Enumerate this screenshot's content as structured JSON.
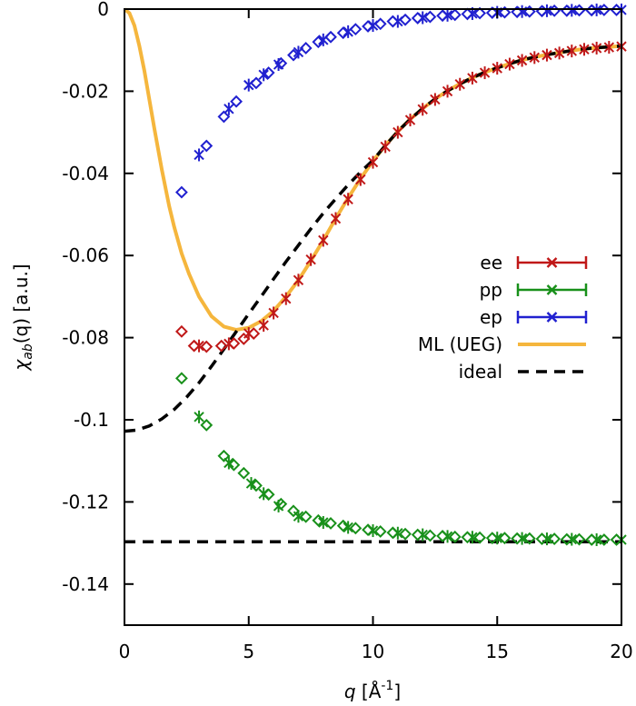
{
  "chart_data": {
    "type": "scatter",
    "xlabel_var": "q",
    "xlabel_rest": " [Å",
    "xlabel_sup": "-1",
    "xlabel_close": "]",
    "ylabel_var": "χ",
    "ylabel_sub": "ab",
    "ylabel_rest": "(q) [a.u.]",
    "xlim": [
      0,
      20
    ],
    "ylim": [
      -0.15,
      0
    ],
    "xticks": [
      0,
      5,
      10,
      15,
      20
    ],
    "xtick_labels": [
      "0",
      "5",
      "10",
      "15",
      "20"
    ],
    "yticks": [
      0,
      -0.02,
      -0.04,
      -0.06,
      -0.08,
      -0.1,
      -0.12,
      -0.14
    ],
    "ytick_labels": [
      "0",
      "-0.02",
      "-0.04",
      "-0.06",
      "-0.08",
      "-0.1",
      "-0.12",
      "-0.14"
    ],
    "grid": false,
    "legend_position": "right",
    "colors": {
      "ee": "#c01818",
      "pp": "#18901a",
      "ep": "#2020d0",
      "ml": "#f5b63d",
      "ideal": "#000000"
    },
    "series": [
      {
        "name": "ee",
        "marker": "x-errorbar",
        "diamond_x": [
          2.3,
          2.8,
          3.3,
          3.9,
          4.4,
          4.8,
          5.2
        ],
        "diamond_y": [
          -0.0785,
          -0.082,
          -0.0822,
          -0.082,
          -0.0814,
          -0.0803,
          -0.079
        ],
        "x": [
          3.0,
          4.2,
          5.0,
          5.6,
          6.0,
          6.5,
          7.0,
          7.5,
          8.0,
          8.5,
          9.0,
          9.5,
          10.0,
          10.5,
          11.0,
          11.5,
          12.0,
          12.5,
          13.0,
          13.5,
          14.0,
          14.5,
          15.0,
          15.5,
          16.0,
          16.5,
          17.0,
          17.5,
          18.0,
          18.5,
          19.0,
          19.5,
          20.0
        ],
        "y": [
          -0.082,
          -0.0815,
          -0.079,
          -0.077,
          -0.074,
          -0.0705,
          -0.066,
          -0.061,
          -0.0563,
          -0.051,
          -0.0463,
          -0.0415,
          -0.0373,
          -0.0335,
          -0.03,
          -0.027,
          -0.0244,
          -0.022,
          -0.02,
          -0.0183,
          -0.0168,
          -0.0155,
          -0.0144,
          -0.0134,
          -0.0125,
          -0.0118,
          -0.0112,
          -0.0107,
          -0.0102,
          -0.0098,
          -0.0095,
          -0.0093,
          -0.0091
        ]
      },
      {
        "name": "pp",
        "marker": "x-errorbar",
        "diamond_x": [
          2.3,
          3.3,
          4.0,
          4.4,
          4.8,
          5.3,
          5.8,
          6.3,
          6.8,
          7.3,
          7.8,
          8.3,
          8.8,
          9.3,
          9.8,
          10.3,
          10.8,
          11.3,
          11.8,
          12.3,
          12.8,
          13.3,
          13.8,
          14.3,
          14.8,
          15.3,
          15.8,
          16.3,
          16.8,
          17.3,
          17.8,
          18.3,
          18.8,
          19.3,
          19.8
        ],
        "diamond_y": [
          -0.0899,
          -0.1013,
          -0.1088,
          -0.111,
          -0.113,
          -0.116,
          -0.1182,
          -0.1205,
          -0.1222,
          -0.1236,
          -0.1245,
          -0.1252,
          -0.1258,
          -0.1264,
          -0.1268,
          -0.1272,
          -0.1275,
          -0.1278,
          -0.128,
          -0.1282,
          -0.1283,
          -0.1285,
          -0.1286,
          -0.1287,
          -0.1288,
          -0.1288,
          -0.1289,
          -0.1289,
          -0.129,
          -0.129,
          -0.1291,
          -0.1291,
          -0.1292,
          -0.1292,
          -0.1292
        ],
        "x": [
          3.0,
          4.2,
          5.1,
          5.6,
          6.2,
          7.0,
          8.0,
          9.0,
          10.0,
          11.0,
          12.0,
          13.0,
          14.0,
          15.0,
          16.0,
          17.0,
          18.0,
          19.0,
          20.0
        ],
        "y": [
          -0.0993,
          -0.1105,
          -0.1155,
          -0.118,
          -0.121,
          -0.1235,
          -0.125,
          -0.1262,
          -0.127,
          -0.1276,
          -0.128,
          -0.1284,
          -0.1286,
          -0.1288,
          -0.1289,
          -0.129,
          -0.1291,
          -0.1292,
          -0.1292
        ]
      },
      {
        "name": "ep",
        "marker": "x-errorbar",
        "diamond_x": [
          2.3,
          3.3,
          4.0,
          4.5,
          5.3,
          5.8,
          6.3,
          6.8,
          7.3,
          7.8,
          8.3,
          8.8,
          9.3,
          9.8,
          10.3,
          10.8,
          11.3,
          11.8,
          12.3,
          12.8,
          13.3,
          13.8,
          14.3,
          14.8,
          15.3,
          15.8,
          16.3,
          16.8,
          17.3,
          17.8,
          18.3,
          18.8,
          19.3,
          19.8
        ],
        "diamond_y": [
          -0.0446,
          -0.0333,
          -0.0262,
          -0.0225,
          -0.018,
          -0.0155,
          -0.0132,
          -0.0112,
          -0.0095,
          -0.008,
          -0.0068,
          -0.0058,
          -0.0049,
          -0.0042,
          -0.0036,
          -0.003,
          -0.0026,
          -0.0022,
          -0.0019,
          -0.0016,
          -0.0014,
          -0.0012,
          -0.001,
          -0.0009,
          -0.0008,
          -0.0007,
          -0.0006,
          -0.0005,
          -0.0004,
          -0.0004,
          -0.0003,
          -0.0003,
          -0.0002,
          -0.0002
        ],
        "x": [
          3.0,
          4.2,
          5.0,
          5.6,
          6.2,
          7.0,
          8.0,
          9.0,
          10.0,
          11.0,
          12.0,
          13.0,
          14.0,
          15.0,
          16.0,
          17.0,
          18.0,
          19.0,
          20.0
        ],
        "y": [
          -0.0355,
          -0.0243,
          -0.0185,
          -0.016,
          -0.0135,
          -0.0105,
          -0.0075,
          -0.0055,
          -0.004,
          -0.003,
          -0.0021,
          -0.0015,
          -0.0011,
          -0.0008,
          -0.0006,
          -0.0004,
          -0.0003,
          -0.0002,
          -0.0002
        ]
      },
      {
        "name": "ML (UEG)",
        "marker": "line",
        "x": [
          0,
          0.2,
          0.4,
          0.6,
          0.8,
          1.0,
          1.2,
          1.5,
          1.8,
          2.0,
          2.3,
          2.6,
          3.0,
          3.5,
          4.0,
          4.5,
          5.0,
          5.5,
          6.0,
          6.5,
          7.0,
          7.5,
          8.0,
          8.5,
          9.0,
          9.5,
          10.0,
          10.5,
          11.0,
          11.5,
          12.0,
          12.5,
          13.0,
          13.5,
          14.0,
          14.5,
          15.0,
          15.5,
          16.0,
          16.5,
          17.0,
          17.5,
          18.0,
          18.5,
          19.0,
          19.5,
          20.0
        ],
        "y": [
          0,
          -0.001,
          -0.004,
          -0.009,
          -0.015,
          -0.022,
          -0.029,
          -0.039,
          -0.048,
          -0.053,
          -0.0595,
          -0.0645,
          -0.07,
          -0.0748,
          -0.0773,
          -0.0781,
          -0.0776,
          -0.076,
          -0.0735,
          -0.07,
          -0.066,
          -0.0613,
          -0.0563,
          -0.051,
          -0.046,
          -0.0413,
          -0.037,
          -0.0332,
          -0.0298,
          -0.0268,
          -0.0242,
          -0.0219,
          -0.0199,
          -0.0182,
          -0.0167,
          -0.0154,
          -0.0143,
          -0.0133,
          -0.0124,
          -0.0117,
          -0.0111,
          -0.0106,
          -0.0101,
          -0.0097,
          -0.0094,
          -0.0092,
          -0.009
        ]
      },
      {
        "name": "ideal",
        "marker": "dashed",
        "x": [
          0,
          0.5,
          1.0,
          1.5,
          2.0,
          2.5,
          3.0,
          3.5,
          4.0,
          4.5,
          5.0,
          5.5,
          6.0,
          6.5,
          7.0,
          7.5,
          8.0,
          8.5,
          9.0,
          9.5,
          10.0,
          10.5,
          11.0,
          11.5,
          12.0,
          12.5,
          13.0,
          13.5,
          14.0,
          14.5,
          15.0,
          15.5,
          16.0,
          16.5,
          17.0,
          17.5,
          18.0,
          18.5,
          19.0,
          19.5,
          20.0
        ],
        "y": [
          -0.1028,
          -0.1025,
          -0.1015,
          -0.0998,
          -0.0975,
          -0.0945,
          -0.091,
          -0.087,
          -0.0828,
          -0.0785,
          -0.0742,
          -0.07,
          -0.0657,
          -0.0615,
          -0.0575,
          -0.0535,
          -0.0497,
          -0.0462,
          -0.0428,
          -0.0397,
          -0.0368,
          -0.0332,
          -0.0298,
          -0.0268,
          -0.0242,
          -0.0219,
          -0.0199,
          -0.0182,
          -0.0167,
          -0.0154,
          -0.0143,
          -0.0133,
          -0.0124,
          -0.0117,
          -0.0111,
          -0.0106,
          -0.0101,
          -0.0097,
          -0.0094,
          -0.0092,
          -0.009
        ]
      },
      {
        "name": "ideal-pp",
        "legend": false,
        "marker": "dashed",
        "x": [
          0,
          20
        ],
        "y": [
          -0.1297,
          -0.1297
        ]
      }
    ],
    "legend": [
      {
        "label": "ee",
        "series": "ee"
      },
      {
        "label": "pp",
        "series": "pp"
      },
      {
        "label": "ep",
        "series": "ep"
      },
      {
        "label": "ML (UEG)",
        "series": "ML (UEG)"
      },
      {
        "label": "ideal",
        "series": "ideal"
      }
    ]
  }
}
